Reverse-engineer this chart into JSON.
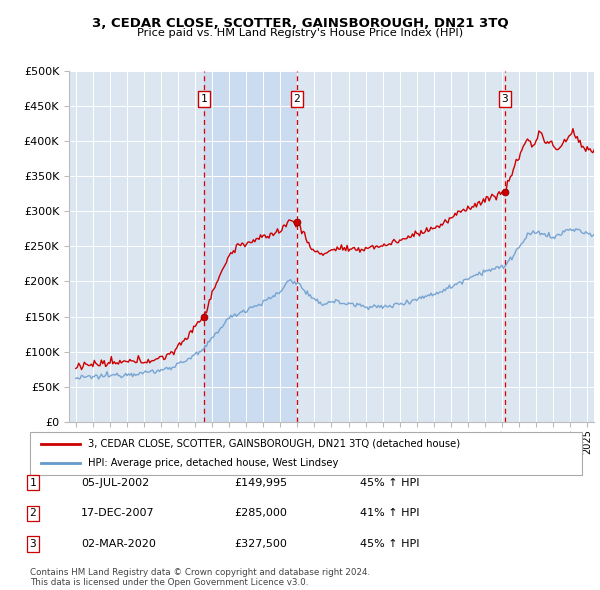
{
  "title": "3, CEDAR CLOSE, SCOTTER, GAINSBOROUGH, DN21 3TQ",
  "subtitle": "Price paid vs. HM Land Registry's House Price Index (HPI)",
  "legend_line1": "3, CEDAR CLOSE, SCOTTER, GAINSBOROUGH, DN21 3TQ (detached house)",
  "legend_line2": "HPI: Average price, detached house, West Lindsey",
  "transactions": [
    {
      "label": "1",
      "date": "05-JUL-2002",
      "price": 149995,
      "price_str": "£149,995",
      "pct": "45%",
      "dir": "↑",
      "x_year": 2002.54
    },
    {
      "label": "2",
      "date": "17-DEC-2007",
      "price": 285000,
      "price_str": "£285,000",
      "pct": "41%",
      "dir": "↑",
      "x_year": 2007.96
    },
    {
      "label": "3",
      "date": "02-MAR-2020",
      "price": 327500,
      "price_str": "£327,500",
      "pct": "45%",
      "dir": "↑",
      "x_year": 2020.17
    }
  ],
  "footer_line1": "Contains HM Land Registry data © Crown copyright and database right 2024.",
  "footer_line2": "This data is licensed under the Open Government Licence v3.0.",
  "ylim": [
    0,
    500000
  ],
  "xlim": [
    1994.6,
    2025.4
  ],
  "yticks": [
    0,
    50000,
    100000,
    150000,
    200000,
    250000,
    300000,
    350000,
    400000,
    450000,
    500000
  ],
  "ytick_labels": [
    "£0",
    "£50K",
    "£100K",
    "£150K",
    "£200K",
    "£250K",
    "£300K",
    "£350K",
    "£400K",
    "£450K",
    "£500K"
  ],
  "red_color": "#cc0000",
  "blue_color": "#6699cc",
  "bg_color": "#dce6f1",
  "shade_color": "#c5d8f0",
  "grid_color": "#ffffff",
  "vline_color": "#dd0000",
  "box_color": "#cc0000"
}
